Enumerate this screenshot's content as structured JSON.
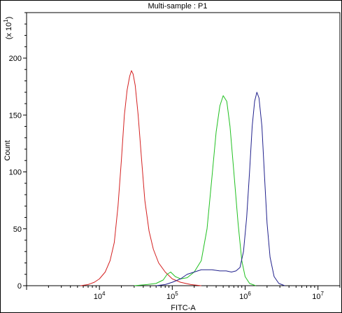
{
  "chart_data": {
    "type": "line",
    "title": "Multi-sample : P1",
    "xlabel": "FITC-A",
    "ylabel": "Count",
    "y_multiplier": "(x 10^1)",
    "x_scale": "log",
    "xlim": [
      1000,
      20000000
    ],
    "ylim": [
      0,
      240
    ],
    "x_ticks": [
      {
        "value": 10000,
        "base": "10",
        "exp": "4"
      },
      {
        "value": 100000,
        "base": "10",
        "exp": "5"
      },
      {
        "value": 1000000,
        "base": "10",
        "exp": "6"
      },
      {
        "value": 10000000,
        "base": "10",
        "exp": "7"
      }
    ],
    "y_ticks": [
      0,
      50,
      100,
      150,
      200
    ],
    "series": [
      {
        "color": "#d42020",
        "points": [
          [
            5500,
            0
          ],
          [
            7000,
            1
          ],
          [
            8500,
            3
          ],
          [
            10000,
            6
          ],
          [
            12000,
            12
          ],
          [
            14000,
            22
          ],
          [
            16000,
            38
          ],
          [
            18000,
            70
          ],
          [
            20000,
            110
          ],
          [
            22000,
            150
          ],
          [
            24000,
            172
          ],
          [
            26000,
            184
          ],
          [
            27500,
            189
          ],
          [
            29000,
            186
          ],
          [
            31000,
            176
          ],
          [
            34000,
            150
          ],
          [
            38000,
            110
          ],
          [
            42000,
            75
          ],
          [
            48000,
            48
          ],
          [
            55000,
            32
          ],
          [
            65000,
            20
          ],
          [
            80000,
            12
          ],
          [
            100000,
            6
          ],
          [
            130000,
            3
          ],
          [
            180000,
            1
          ],
          [
            250000,
            0
          ]
        ]
      },
      {
        "color": "#20c020",
        "points": [
          [
            30000,
            0
          ],
          [
            45000,
            1
          ],
          [
            60000,
            2
          ],
          [
            75000,
            5
          ],
          [
            85000,
            10
          ],
          [
            95000,
            12
          ],
          [
            110000,
            8
          ],
          [
            130000,
            6
          ],
          [
            160000,
            7
          ],
          [
            200000,
            12
          ],
          [
            250000,
            22
          ],
          [
            300000,
            50
          ],
          [
            350000,
            95
          ],
          [
            400000,
            135
          ],
          [
            450000,
            158
          ],
          [
            500000,
            167
          ],
          [
            560000,
            162
          ],
          [
            620000,
            140
          ],
          [
            700000,
            100
          ],
          [
            800000,
            55
          ],
          [
            900000,
            22
          ],
          [
            1000000,
            8
          ],
          [
            1150000,
            2
          ],
          [
            1400000,
            0
          ]
        ]
      },
      {
        "color": "#20208c",
        "points": [
          [
            60000,
            0
          ],
          [
            80000,
            1
          ],
          [
            100000,
            3
          ],
          [
            130000,
            6
          ],
          [
            160000,
            10
          ],
          [
            200000,
            12
          ],
          [
            250000,
            14
          ],
          [
            350000,
            14
          ],
          [
            450000,
            13
          ],
          [
            550000,
            13
          ],
          [
            650000,
            12
          ],
          [
            750000,
            13
          ],
          [
            850000,
            16
          ],
          [
            950000,
            30
          ],
          [
            1050000,
            60
          ],
          [
            1150000,
            100
          ],
          [
            1250000,
            140
          ],
          [
            1350000,
            162
          ],
          [
            1450000,
            170
          ],
          [
            1550000,
            165
          ],
          [
            1700000,
            140
          ],
          [
            1850000,
            95
          ],
          [
            2000000,
            55
          ],
          [
            2200000,
            25
          ],
          [
            2500000,
            8
          ],
          [
            2900000,
            2
          ],
          [
            3500000,
            0
          ]
        ]
      }
    ]
  }
}
